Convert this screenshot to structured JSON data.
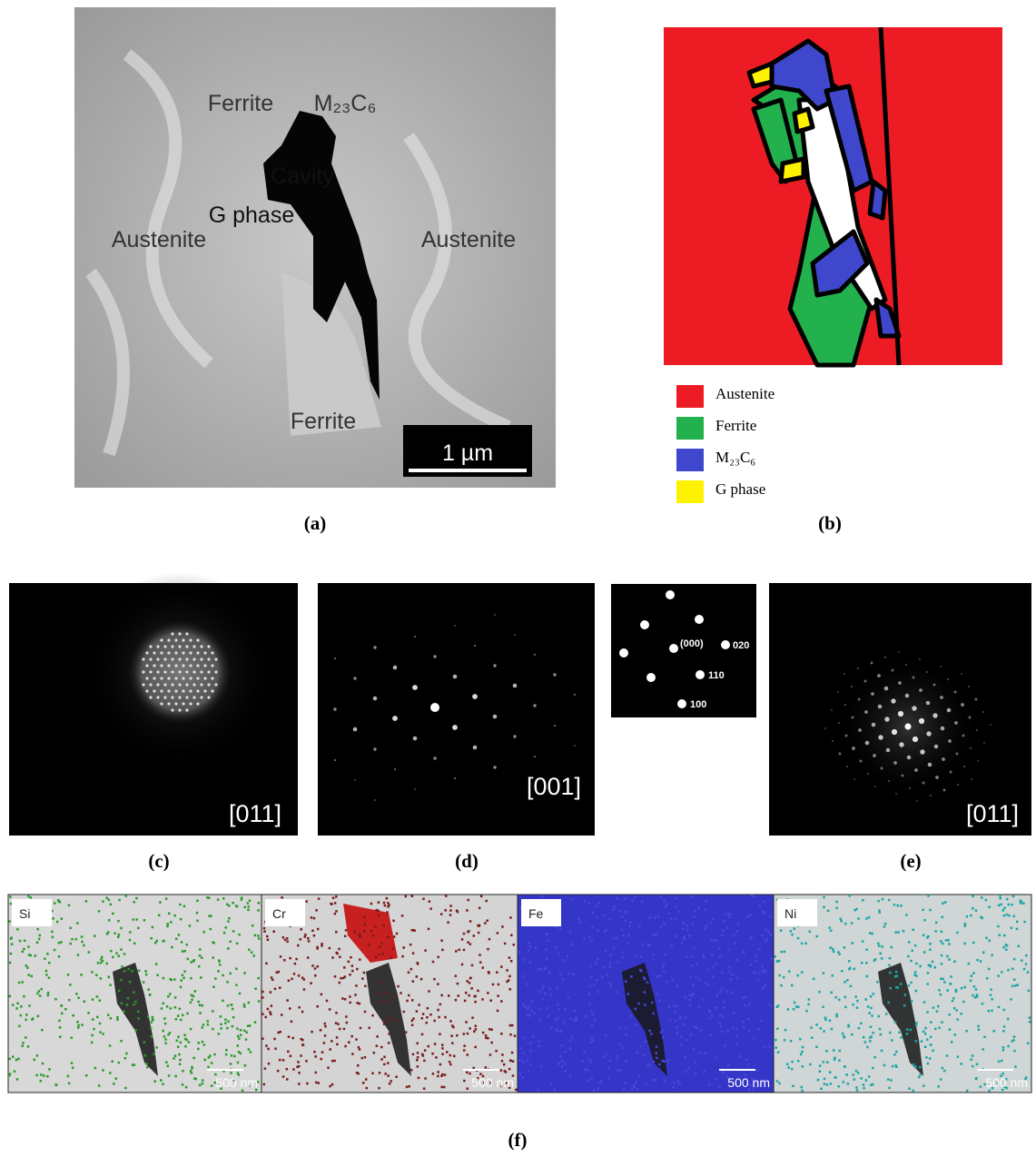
{
  "panel_a": {
    "label": "(a)",
    "annotations": [
      "Ferrite",
      "M₂₃C₆",
      "Cavity",
      "G phase",
      "Austenite",
      "Austenite",
      "Ferrite"
    ],
    "scale_bar": "1 µm"
  },
  "panel_b": {
    "label": "(b)",
    "legend": [
      {
        "name": "Austenite",
        "color": "#ed1c24"
      },
      {
        "name": "Ferrite",
        "color": "#22b14c"
      },
      {
        "name": "M₂₃C₆",
        "color": "#3f48cc"
      },
      {
        "name": "G phase",
        "color": "#fff200"
      }
    ]
  },
  "panel_c": {
    "label": "(c)",
    "zone_axis": "[011]"
  },
  "panel_d": {
    "label": "(d)",
    "zone_axis": "[001]",
    "inset_labels": [
      "(000)",
      "020",
      "110",
      "100"
    ]
  },
  "panel_e": {
    "label": "(e)",
    "zone_axis": "[011]"
  },
  "panel_f": {
    "label": "(f)",
    "maps": [
      {
        "element": "Si",
        "scale_bar": "500 nm"
      },
      {
        "element": "Cr",
        "scale_bar": "500 nm"
      },
      {
        "element": "Fe",
        "scale_bar": "500 nm"
      },
      {
        "element": "Ni",
        "scale_bar": "500 nm"
      }
    ]
  }
}
